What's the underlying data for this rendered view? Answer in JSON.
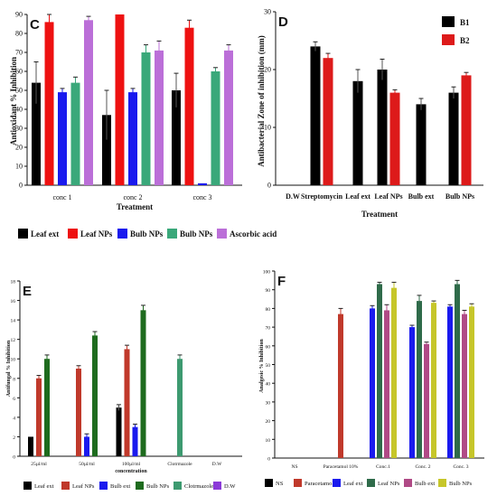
{
  "chart_data": [
    {
      "panel": "C",
      "type": "bar",
      "categories": [
        "conc 1",
        "conc 2",
        "conc 3"
      ],
      "series": [
        {
          "name": "Leaf ext",
          "color": "#000000",
          "values": [
            54,
            37,
            50
          ],
          "errors": [
            11,
            13,
            9
          ]
        },
        {
          "name": "Leaf NPs",
          "color": "#ee1111",
          "values": [
            86,
            90,
            83
          ],
          "errors": [
            4,
            0,
            4
          ]
        },
        {
          "name": "Bulb NPs",
          "color": "#1a1aee",
          "values": [
            49,
            49,
            1
          ],
          "errors": [
            2,
            2,
            0
          ]
        },
        {
          "name": "Bulb NPs",
          "color": "#3aa87a",
          "values": [
            54,
            70,
            60
          ],
          "errors": [
            3,
            4,
            2
          ]
        },
        {
          "name": "Ascorbic acid",
          "color": "#bb6fd8",
          "values": [
            87,
            71,
            71
          ],
          "errors": [
            2,
            5,
            3
          ]
        }
      ],
      "xlabel": "Treatment",
      "ylabel": "Antioxidant % Inhibition",
      "ylim": [
        0,
        90
      ],
      "yticks": [
        0,
        10,
        20,
        30,
        40,
        50,
        60,
        70,
        80,
        90
      ]
    },
    {
      "panel": "D",
      "type": "bar",
      "categories": [
        "D.W",
        "Streptomycin",
        "Leaf ext",
        "Leaf NPs",
        "Bulb ext",
        "Bulb NPs"
      ],
      "series": [
        {
          "name": "B1",
          "color": "#000000",
          "values": [
            0,
            24,
            18,
            20,
            14,
            16
          ],
          "errors": [
            0,
            0.8,
            2,
            1.8,
            1,
            1
          ]
        },
        {
          "name": "B2",
          "color": "#dd1a1a",
          "values": [
            0,
            22,
            0,
            16,
            0,
            19
          ],
          "errors": [
            0,
            0.8,
            0,
            0.5,
            0,
            0.5
          ]
        }
      ],
      "xlabel": "Treatment",
      "ylabel": "Antibacterial Zone of inhibition (mm)",
      "ylim": [
        0,
        30
      ],
      "yticks": [
        0,
        10,
        20,
        30
      ],
      "legend": "top-right"
    },
    {
      "panel": "E",
      "type": "bar",
      "categories": [
        "25µl/ml",
        "50µl/ml",
        "100µl/ml",
        "Clotrmazole",
        "D.W"
      ],
      "series": [
        {
          "name": "Leaf ext",
          "color": "#000000",
          "values": [
            2,
            0,
            5,
            0,
            0
          ],
          "errors": [
            0,
            0,
            0.3,
            0,
            0
          ]
        },
        {
          "name": "Leaf NPs",
          "color": "#c0392b",
          "values": [
            8,
            9,
            11,
            0,
            0
          ],
          "errors": [
            0.3,
            0.3,
            0.4,
            0,
            0
          ]
        },
        {
          "name": "Bulb ext",
          "color": "#1a1aee",
          "values": [
            0,
            2,
            3,
            0,
            0
          ],
          "errors": [
            0,
            0.3,
            0.3,
            0,
            0
          ]
        },
        {
          "name": "Bulb NPs",
          "color": "#1e6b1e",
          "values": [
            10,
            12.4,
            15,
            0,
            0
          ],
          "errors": [
            0.4,
            0.4,
            0.5,
            0,
            0
          ]
        },
        {
          "name": "Clotrmazole",
          "color": "#3d9a70",
          "values": [
            0,
            0,
            0,
            10,
            0
          ],
          "errors": [
            0,
            0,
            0,
            0.4,
            0
          ]
        },
        {
          "name": "D.W",
          "color": "#8b3ad8",
          "values": [
            0,
            0,
            0,
            0,
            0
          ],
          "errors": [
            0,
            0,
            0,
            0,
            0
          ]
        }
      ],
      "xlabel": "concentration",
      "ylabel": "Antifungal % Inhibition",
      "ylim": [
        0,
        18
      ],
      "yticks": [
        0,
        2,
        4,
        6,
        8,
        10,
        12,
        14,
        16,
        18
      ]
    },
    {
      "panel": "F",
      "type": "bar",
      "categories": [
        "NS",
        "Paracetamol 10%",
        "Conc.1",
        "Conc. 2",
        "Conc. 3"
      ],
      "series": [
        {
          "name": "NS",
          "color": "#000000",
          "values": [
            0,
            0,
            0,
            0,
            0
          ],
          "errors": [
            0,
            0,
            0,
            0,
            0
          ]
        },
        {
          "name": "Paracetamol",
          "color": "#c0392b",
          "values": [
            0,
            77,
            0,
            0,
            0
          ],
          "errors": [
            0,
            3,
            0,
            0,
            0
          ]
        },
        {
          "name": "Leaf ext",
          "color": "#1a1aee",
          "values": [
            0,
            0,
            80,
            70,
            81
          ],
          "errors": [
            0,
            0,
            1.5,
            1,
            1
          ]
        },
        {
          "name": "Leaf NPs",
          "color": "#2f6b4a",
          "values": [
            0,
            0,
            93,
            84,
            93
          ],
          "errors": [
            0,
            0,
            1,
            3,
            2
          ]
        },
        {
          "name": "Bulb ext",
          "color": "#b04a86",
          "values": [
            0,
            0,
            79,
            61,
            77
          ],
          "errors": [
            0,
            0,
            3,
            1,
            2
          ]
        },
        {
          "name": "Bulb NPs",
          "color": "#c6c62a",
          "values": [
            0,
            0,
            91,
            83,
            81
          ],
          "errors": [
            0,
            0,
            3,
            1,
            1.5
          ]
        }
      ],
      "xlabel": "",
      "ylabel": "Analgesic % Inhibition",
      "ylim": [
        0,
        100
      ],
      "yticks": [
        0,
        10,
        20,
        30,
        40,
        50,
        60,
        70,
        80,
        90,
        100
      ]
    }
  ]
}
